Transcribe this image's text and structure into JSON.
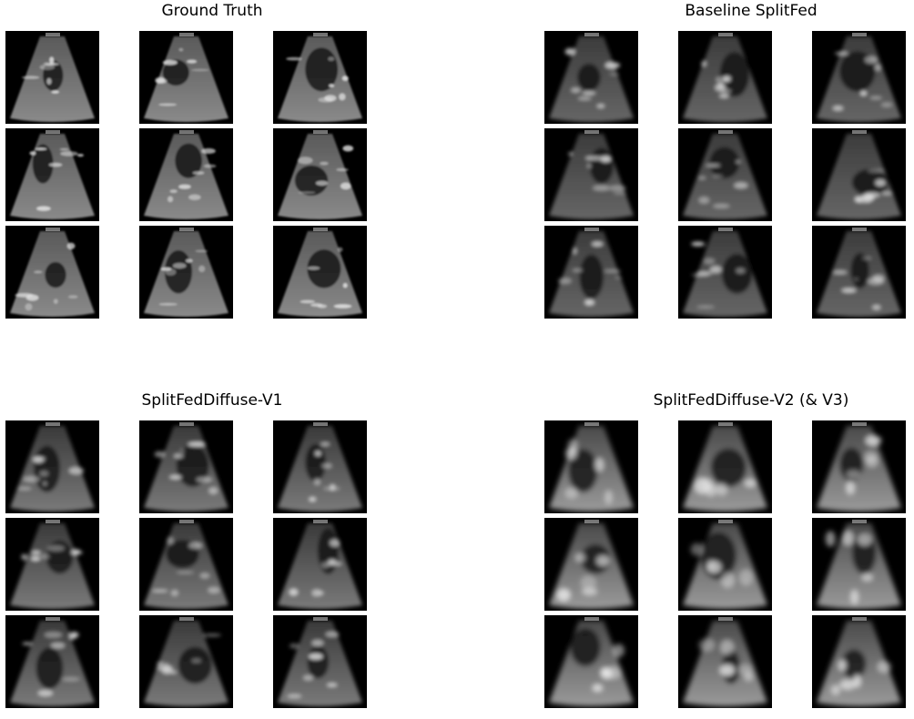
{
  "panels": [
    {
      "title": "Ground Truth",
      "style": "sharp"
    },
    {
      "title": "Baseline SplitFed",
      "style": "noisy"
    },
    {
      "title": "SplitFedDiffuse-V1",
      "style": "dim"
    },
    {
      "title": "SplitFedDiffuse-V2 (& V3)",
      "style": "blobby"
    }
  ],
  "grid": {
    "rows": 3,
    "cols": 3
  }
}
